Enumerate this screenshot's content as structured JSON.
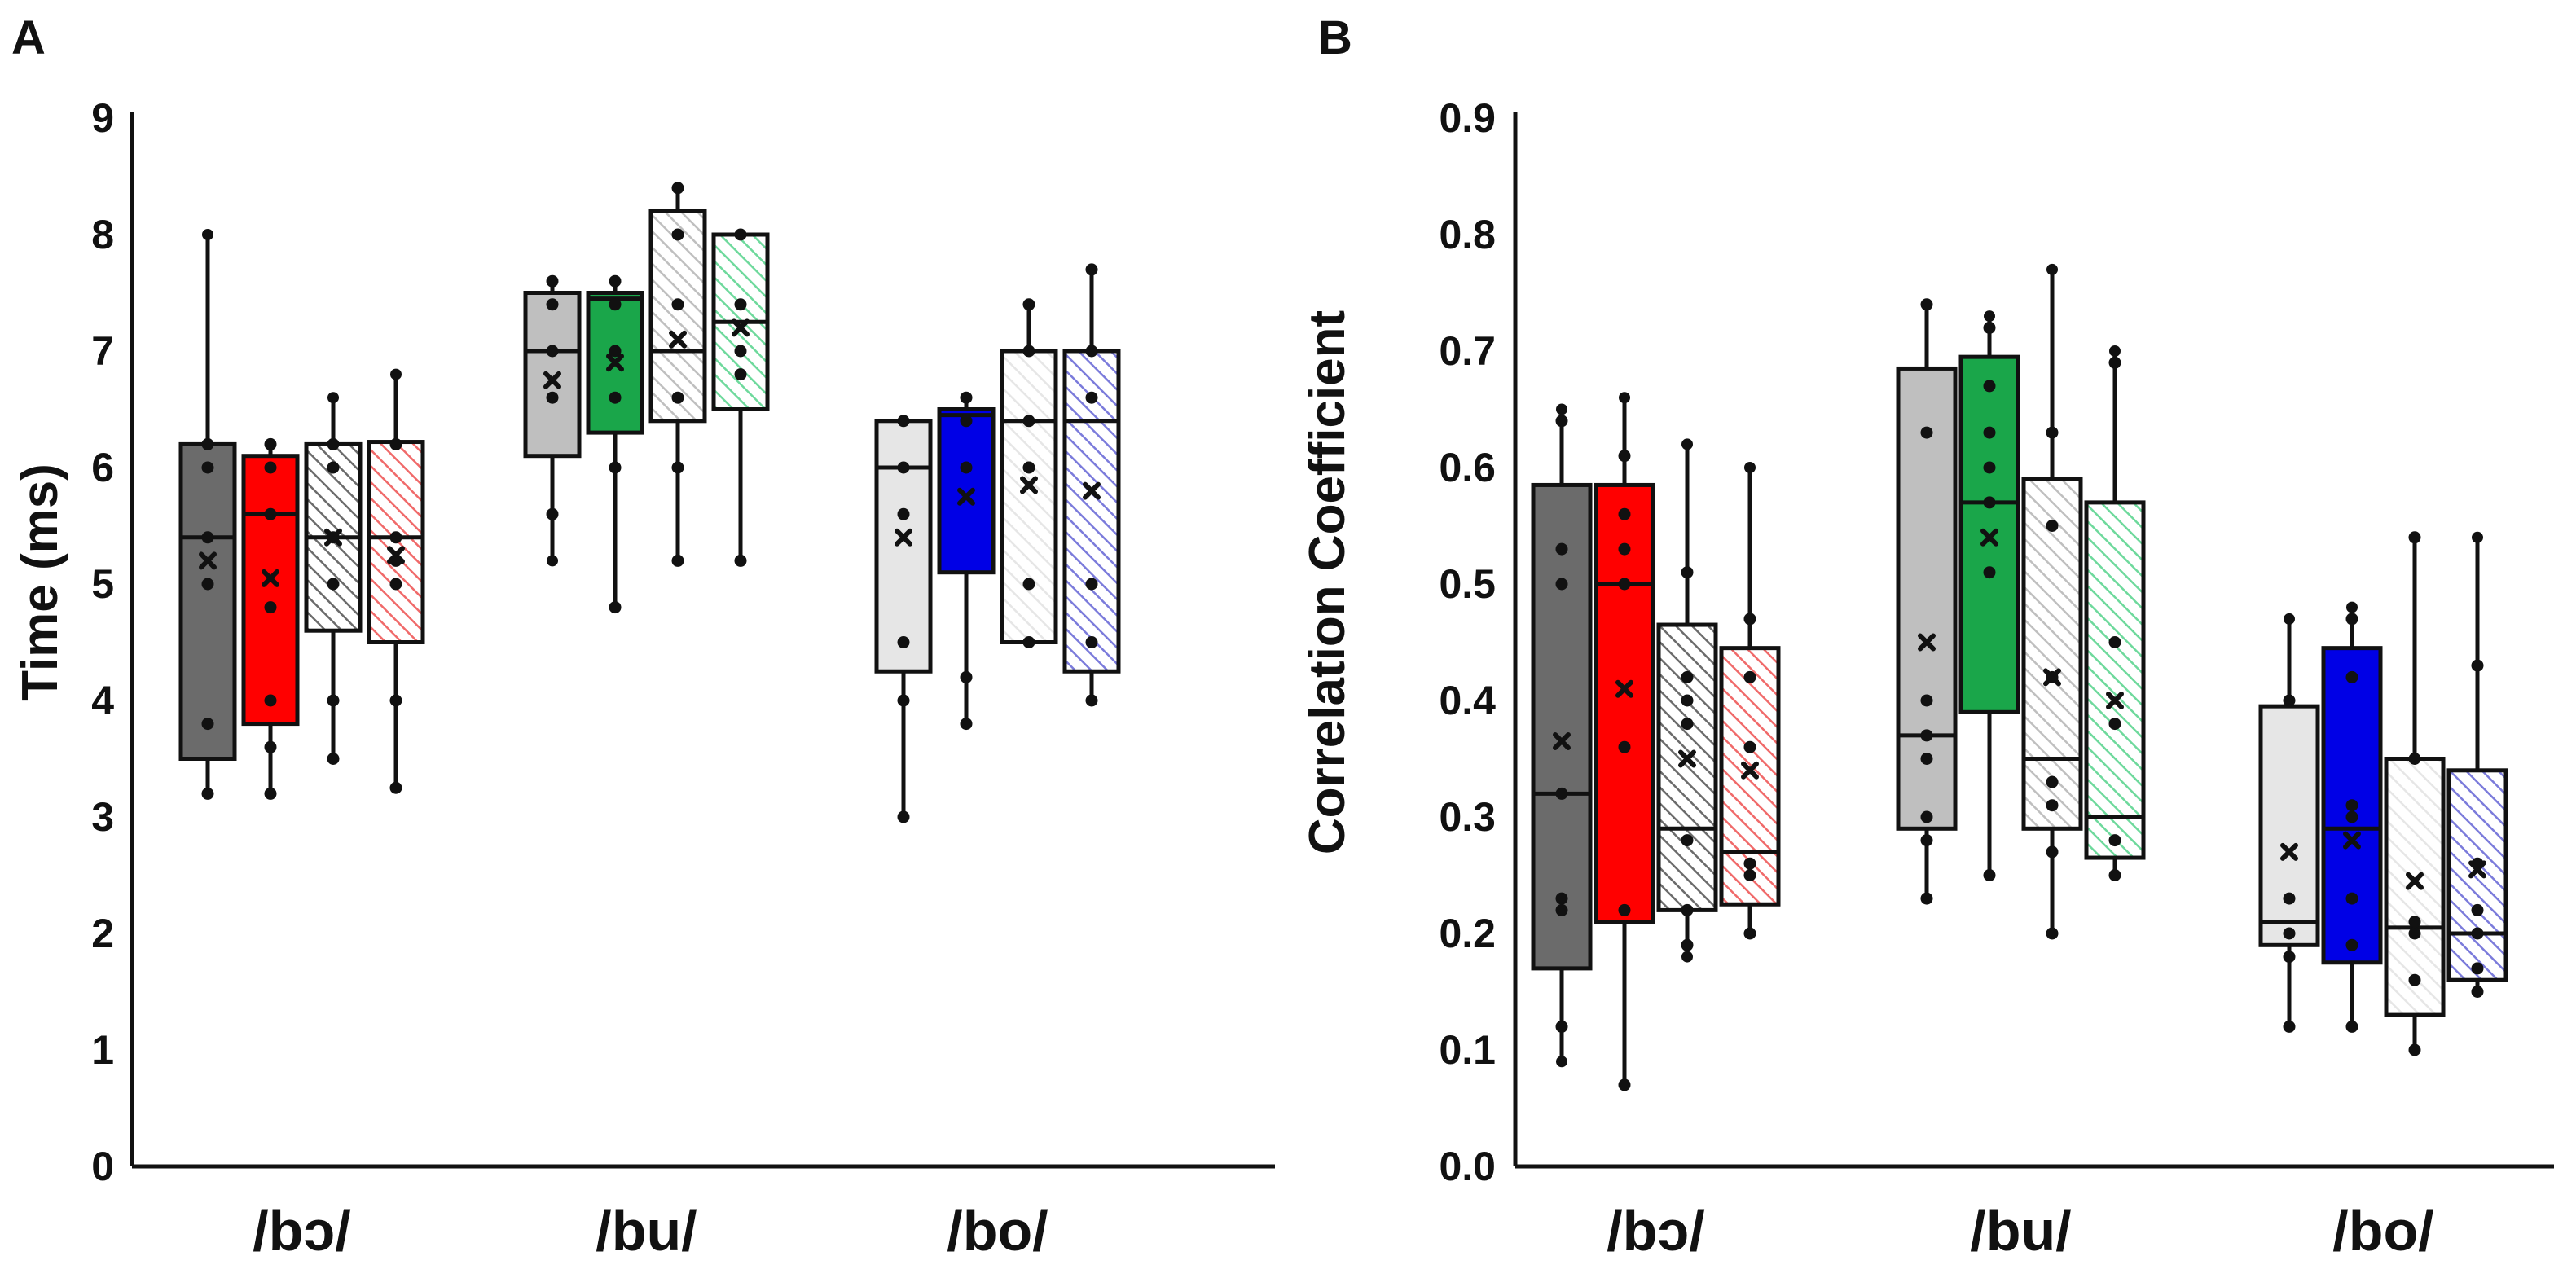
{
  "chart_data": [
    {
      "type": "box",
      "panel": "A",
      "ylabel": "Time (ms)",
      "xlabel": "",
      "ylim": [
        0,
        9
      ],
      "yticks": [
        "0",
        "1",
        "2",
        "3",
        "4",
        "5",
        "6",
        "7",
        "8",
        "9"
      ],
      "categories": [
        "/bɔ/",
        "/bu/",
        "/bo/"
      ],
      "groups": [
        {
          "category": "/bɔ/",
          "boxes": [
            {
              "color": "#6b6b6b",
              "hatch": false,
              "min": 3.2,
              "q1": 3.5,
              "median": 5.4,
              "q3": 6.2,
              "max": 8.0,
              "mean": 5.2,
              "points": [
                3.2,
                3.8,
                5.0,
                5.4,
                6.0,
                6.2
              ]
            },
            {
              "color": "#ff0000",
              "hatch": false,
              "min": 3.2,
              "q1": 3.8,
              "median": 5.6,
              "q3": 6.1,
              "max": 6.2,
              "mean": 5.05,
              "points": [
                3.2,
                3.6,
                4.0,
                4.8,
                5.6,
                6.0,
                6.2
              ]
            },
            {
              "color": "#6b6b6b",
              "hatch": true,
              "min": 3.5,
              "q1": 4.6,
              "median": 5.4,
              "q3": 6.2,
              "max": 6.6,
              "mean": 5.4,
              "points": [
                3.5,
                4.0,
                5.0,
                5.4,
                6.0,
                6.2
              ]
            },
            {
              "color": "#f06a6a",
              "hatch": true,
              "min": 3.25,
              "q1": 4.5,
              "median": 5.4,
              "q3": 6.22,
              "max": 6.8,
              "mean": 5.25,
              "points": [
                3.25,
                4.0,
                5.0,
                5.2,
                5.4,
                6.2
              ]
            }
          ]
        },
        {
          "category": "/bu/",
          "boxes": [
            {
              "color": "#bfbfbf",
              "hatch": false,
              "min": 5.2,
              "q1": 6.1,
              "median": 7.0,
              "q3": 7.5,
              "max": 7.6,
              "mean": 6.75,
              "points": [
                5.6,
                6.6,
                7.0,
                7.4,
                7.6
              ]
            },
            {
              "color": "#1aa64a",
              "hatch": false,
              "min": 4.8,
              "q1": 6.3,
              "median": 7.45,
              "q3": 7.5,
              "max": 7.6,
              "mean": 6.9,
              "points": [
                4.8,
                6.0,
                6.6,
                7.0,
                7.4,
                7.6
              ]
            },
            {
              "color": "#bfbfbf",
              "hatch": true,
              "min": 5.2,
              "q1": 6.4,
              "median": 7.0,
              "q3": 8.2,
              "max": 8.4,
              "mean": 7.1,
              "points": [
                5.2,
                6.0,
                6.6,
                7.4,
                8.0,
                8.4
              ]
            },
            {
              "color": "#6ed99c",
              "hatch": true,
              "min": 5.2,
              "q1": 6.5,
              "median": 7.25,
              "q3": 8.0,
              "max": 8.0,
              "mean": 7.2,
              "points": [
                5.2,
                6.8,
                7.0,
                7.4,
                8.0
              ]
            }
          ]
        },
        {
          "category": "/bo/",
          "boxes": [
            {
              "color": "#e6e6e6",
              "hatch": false,
              "min": 3.0,
              "q1": 4.25,
              "median": 6.0,
              "q3": 6.4,
              "max": 6.4,
              "mean": 5.4,
              "points": [
                3.0,
                4.0,
                4.5,
                5.6,
                6.0,
                6.4
              ]
            },
            {
              "color": "#0000e6",
              "hatch": false,
              "min": 3.8,
              "q1": 5.1,
              "median": 6.45,
              "q3": 6.5,
              "max": 6.6,
              "mean": 5.75,
              "points": [
                3.8,
                4.2,
                6.0,
                6.4,
                6.6
              ]
            },
            {
              "color": "#e6e6e6",
              "hatch": true,
              "min": 4.5,
              "q1": 4.5,
              "median": 6.4,
              "q3": 7.0,
              "max": 7.4,
              "mean": 5.85,
              "points": [
                4.5,
                5.0,
                6.0,
                6.4,
                7.0,
                7.4
              ]
            },
            {
              "color": "#7b7bdb",
              "hatch": true,
              "min": 4.0,
              "q1": 4.25,
              "median": 6.4,
              "q3": 7.0,
              "max": 7.7,
              "mean": 5.8,
              "points": [
                4.0,
                4.5,
                5.0,
                6.6,
                7.0,
                7.7
              ]
            }
          ]
        }
      ]
    },
    {
      "type": "box",
      "panel": "B",
      "ylabel": "Correlation Coefficient",
      "xlabel": "",
      "ylim": [
        0.0,
        0.9
      ],
      "yticks": [
        "0.0",
        "0.1",
        "0.2",
        "0.3",
        "0.4",
        "0.5",
        "0.6",
        "0.7",
        "0.8",
        "0.9"
      ],
      "categories": [
        "/bɔ/",
        "/bu/",
        "/bo/"
      ],
      "groups": [
        {
          "category": "/bɔ/",
          "boxes": [
            {
              "color": "#6b6b6b",
              "hatch": false,
              "min": 0.09,
              "q1": 0.17,
              "median": 0.32,
              "q3": 0.585,
              "max": 0.65,
              "mean": 0.365,
              "points": [
                0.12,
                0.22,
                0.23,
                0.32,
                0.5,
                0.53,
                0.64
              ]
            },
            {
              "color": "#ff0000",
              "hatch": false,
              "min": 0.07,
              "q1": 0.21,
              "median": 0.5,
              "q3": 0.585,
              "max": 0.66,
              "mean": 0.41,
              "points": [
                0.07,
                0.22,
                0.36,
                0.5,
                0.53,
                0.56,
                0.61
              ]
            },
            {
              "color": "#6b6b6b",
              "hatch": true,
              "min": 0.18,
              "q1": 0.22,
              "median": 0.29,
              "q3": 0.465,
              "max": 0.62,
              "mean": 0.35,
              "points": [
                0.19,
                0.22,
                0.28,
                0.38,
                0.4,
                0.42,
                0.51
              ]
            },
            {
              "color": "#f06a6a",
              "hatch": true,
              "min": 0.2,
              "q1": 0.225,
              "median": 0.27,
              "q3": 0.445,
              "max": 0.6,
              "mean": 0.34,
              "points": [
                0.2,
                0.25,
                0.26,
                0.36,
                0.42,
                0.47
              ]
            }
          ]
        },
        {
          "category": "/bu/",
          "boxes": [
            {
              "color": "#bfbfbf",
              "hatch": false,
              "min": 0.23,
              "q1": 0.29,
              "median": 0.37,
              "q3": 0.685,
              "max": 0.74,
              "mean": 0.45,
              "points": [
                0.23,
                0.28,
                0.3,
                0.35,
                0.37,
                0.4,
                0.63,
                0.74
              ]
            },
            {
              "color": "#1aa64a",
              "hatch": false,
              "min": 0.25,
              "q1": 0.39,
              "median": 0.57,
              "q3": 0.695,
              "max": 0.73,
              "mean": 0.54,
              "points": [
                0.25,
                0.51,
                0.57,
                0.6,
                0.63,
                0.67,
                0.72
              ]
            },
            {
              "color": "#bfbfbf",
              "hatch": true,
              "min": 0.2,
              "q1": 0.29,
              "median": 0.35,
              "q3": 0.59,
              "max": 0.77,
              "mean": 0.42,
              "points": [
                0.2,
                0.27,
                0.31,
                0.33,
                0.42,
                0.55,
                0.63
              ]
            },
            {
              "color": "#6ed99c",
              "hatch": true,
              "min": 0.25,
              "q1": 0.265,
              "median": 0.3,
              "q3": 0.57,
              "max": 0.7,
              "mean": 0.4,
              "points": [
                0.25,
                0.28,
                0.38,
                0.45,
                0.69
              ]
            }
          ]
        },
        {
          "category": "/bo/",
          "boxes": [
            {
              "color": "#e6e6e6",
              "hatch": false,
              "min": 0.12,
              "q1": 0.19,
              "median": 0.21,
              "q3": 0.395,
              "max": 0.47,
              "mean": 0.27,
              "points": [
                0.12,
                0.18,
                0.2,
                0.23,
                0.4
              ]
            },
            {
              "color": "#0000e6",
              "hatch": false,
              "min": 0.12,
              "q1": 0.175,
              "median": 0.29,
              "q3": 0.445,
              "max": 0.48,
              "mean": 0.28,
              "points": [
                0.12,
                0.19,
                0.23,
                0.3,
                0.31,
                0.42,
                0.47
              ]
            },
            {
              "color": "#e6e6e6",
              "hatch": true,
              "min": 0.1,
              "q1": 0.13,
              "median": 0.205,
              "q3": 0.35,
              "max": 0.54,
              "mean": 0.245,
              "points": [
                0.1,
                0.16,
                0.2,
                0.21,
                0.35,
                0.54
              ]
            },
            {
              "color": "#7b7bdb",
              "hatch": true,
              "min": 0.15,
              "q1": 0.16,
              "median": 0.2,
              "q3": 0.34,
              "max": 0.54,
              "mean": 0.255,
              "points": [
                0.15,
                0.17,
                0.2,
                0.22,
                0.26,
                0.43
              ]
            }
          ]
        }
      ]
    }
  ]
}
